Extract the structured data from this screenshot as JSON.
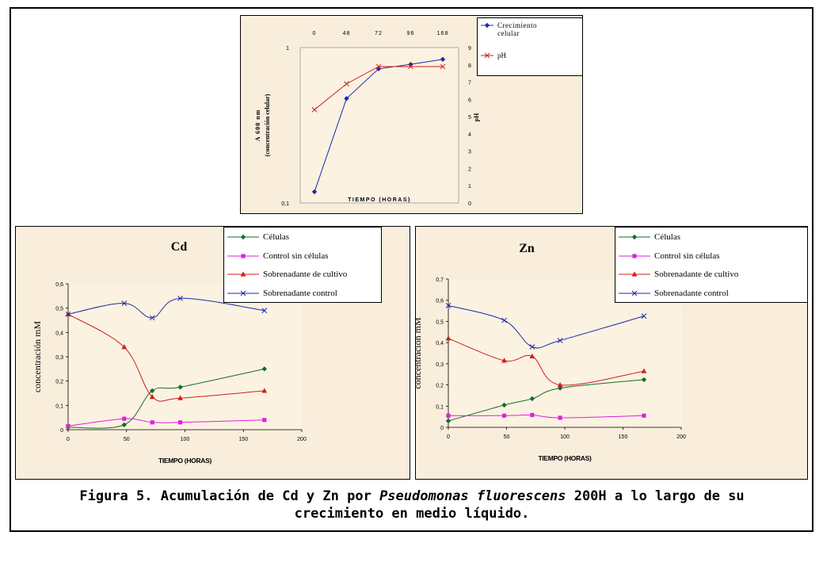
{
  "caption": {
    "line1_before": "Figura 5. Acumulación de Cd y Zn por ",
    "line1_italic": "Pseudomonas fluorescens",
    "line1_after": " 200H a lo largo de su",
    "line2": "crecimiento en medio líquido."
  },
  "chart_data": [
    {
      "type": "line",
      "title": "",
      "xlabel": "TIEMPO (HORAS)",
      "ylabel": "A 600 nm (concentración celular)",
      "y2label": "pH",
      "categories": [
        "0",
        "48",
        "72",
        "96",
        "168"
      ],
      "yscale": "log",
      "ylim": [
        0.1,
        1
      ],
      "y_tick_labels": [
        "0,1",
        "1"
      ],
      "y2lim": [
        0,
        9
      ],
      "y2_ticks": [
        "0",
        "1",
        "2",
        "3",
        "4",
        "5",
        "6",
        "7",
        "8",
        "9"
      ],
      "series": [
        {
          "name": "Crecimiento celular",
          "axis": "left",
          "color": "#1f2aa8",
          "marker": "diamond",
          "values": [
            0.118,
            0.47,
            0.73,
            0.78,
            0.84
          ]
        },
        {
          "name": "pH",
          "axis": "right",
          "color": "#cc1f1f",
          "marker": "x",
          "values": [
            5.4,
            6.9,
            7.9,
            7.9,
            7.9
          ]
        }
      ],
      "legend": "top-right",
      "grid": false
    },
    {
      "type": "line",
      "title": "Cd",
      "xlabel": "TIEMPO (HORAS)",
      "ylabel": "concentración mM",
      "xlim": [
        0,
        200
      ],
      "x_ticks": [
        0,
        50,
        100,
        150,
        200
      ],
      "ylim": [
        0,
        0.6
      ],
      "y_ticks": [
        "0",
        "0,1",
        "0,2",
        "0,3",
        "0,4",
        "0,5",
        "0,6"
      ],
      "series": [
        {
          "name": "Células",
          "color": "#1a6b2a",
          "marker": "diamond",
          "x": [
            0,
            48,
            72,
            96,
            168
          ],
          "y": [
            0.01,
            0.02,
            0.16,
            0.175,
            0.25
          ]
        },
        {
          "name": "Control sin células",
          "color": "#e020e0",
          "marker": "square",
          "x": [
            0,
            48,
            72,
            96,
            168
          ],
          "y": [
            0.015,
            0.045,
            0.03,
            0.03,
            0.04
          ]
        },
        {
          "name": "Sobrenadante de cultivo",
          "color": "#cc1f1f",
          "marker": "triangle",
          "x": [
            0,
            48,
            72,
            96,
            168
          ],
          "y": [
            0.475,
            0.34,
            0.135,
            0.13,
            0.16
          ]
        },
        {
          "name": "Sobrenadante control",
          "color": "#1f2aa8",
          "marker": "x",
          "x": [
            0,
            48,
            72,
            96,
            168
          ],
          "y": [
            0.475,
            0.52,
            0.46,
            0.54,
            0.49
          ]
        }
      ],
      "legend": "top-right",
      "grid": false
    },
    {
      "type": "line",
      "title": "Zn",
      "xlabel": "TIEMPO (HORAS)",
      "ylabel": "concentración mM",
      "xlim": [
        0,
        200
      ],
      "x_ticks": [
        0,
        50,
        100,
        150,
        200
      ],
      "ylim": [
        0,
        0.7
      ],
      "y_ticks": [
        "0",
        "0,1",
        "0,2",
        "0,3",
        "0,4",
        "0,5",
        "0,6",
        "0,7"
      ],
      "series": [
        {
          "name": "Células",
          "color": "#1a6b2a",
          "marker": "diamond",
          "x": [
            0,
            48,
            72,
            96,
            168
          ],
          "y": [
            0.03,
            0.105,
            0.135,
            0.185,
            0.225
          ]
        },
        {
          "name": "Control sin células",
          "color": "#e020e0",
          "marker": "square",
          "x": [
            0,
            48,
            72,
            96,
            168
          ],
          "y": [
            0.055,
            0.055,
            0.058,
            0.045,
            0.055
          ]
        },
        {
          "name": "Sobrenadante de cultivo",
          "color": "#cc1f1f",
          "marker": "triangle",
          "x": [
            0,
            48,
            72,
            96,
            168
          ],
          "y": [
            0.42,
            0.315,
            0.335,
            0.2,
            0.265
          ]
        },
        {
          "name": "Sobrenadante control",
          "color": "#1f2aa8",
          "marker": "x",
          "x": [
            0,
            48,
            72,
            96,
            168
          ],
          "y": [
            0.575,
            0.505,
            0.38,
            0.41,
            0.525
          ]
        }
      ],
      "legend": "top-right",
      "grid": false
    }
  ]
}
